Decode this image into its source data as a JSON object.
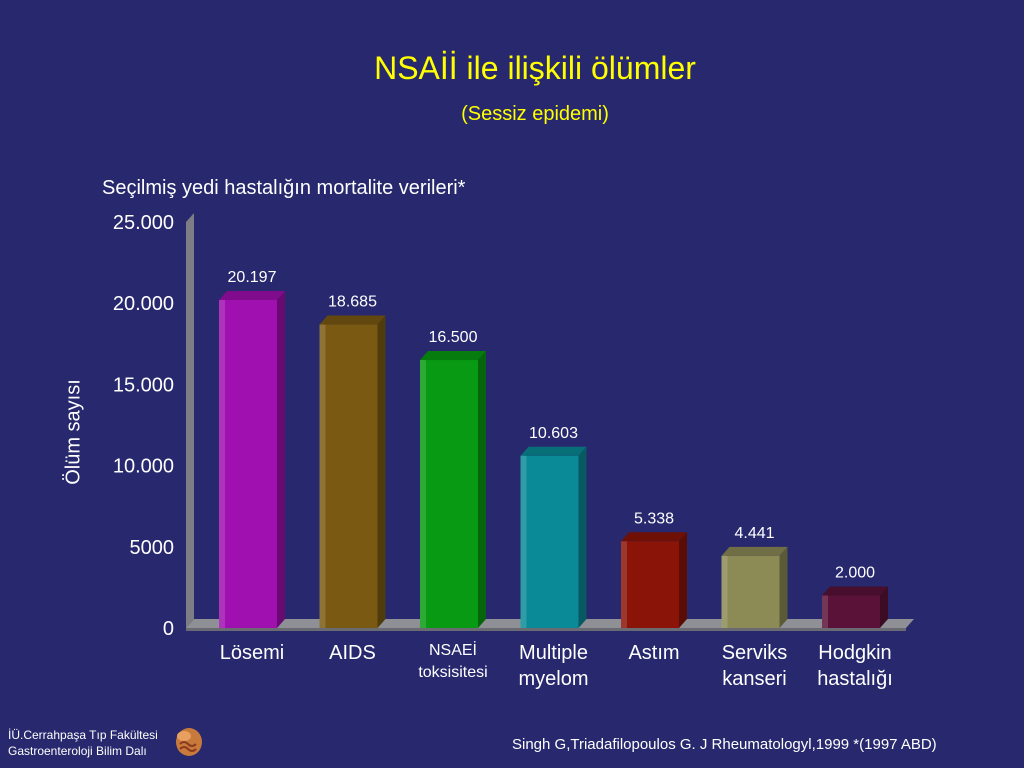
{
  "slide": {
    "title": "NSAİİ ile ilişkili ölümler",
    "subtitle": "(Sessiz epidemi)",
    "footer": {
      "institution_line1": "İÜ.Cerrahpaşa Tıp Fakültesi",
      "institution_line2": "Gastroenteroloji Bilim Dalı",
      "citation": "Singh G,Triadafilopoulos G. J Rheumatologyl,1999    *(1997 ABD)"
    }
  },
  "chart_data": {
    "type": "bar",
    "title": "Seçilmiş yedi hastalığın  mortalite verileri*",
    "ylabel": "Ölüm sayısı",
    "ylim": [
      0,
      25000
    ],
    "yticks": [
      0,
      5000,
      10000,
      15000,
      20000,
      25000
    ],
    "ytick_labels": [
      "0",
      "5000",
      "10.000",
      "15.000",
      "20.000",
      "25.000"
    ],
    "categories": [
      [
        "Lösemi"
      ],
      [
        "AIDS"
      ],
      [
        "NSAEİ",
        "toksisitesi"
      ],
      [
        "Multiple",
        "myelom"
      ],
      [
        "Astım"
      ],
      [
        "Serviks",
        "kanseri"
      ],
      [
        "Hodgkin",
        "hastalığı"
      ]
    ],
    "values": [
      20197,
      18685,
      16500,
      10603,
      5338,
      4441,
      2000
    ],
    "value_labels": [
      "20.197",
      "18.685",
      "16.500",
      "10.603",
      "5.338",
      "4.441",
      "2.000"
    ],
    "colors": [
      "#a00fb0",
      "#7a5a12",
      "#089a12",
      "#0a8a96",
      "#8a1408",
      "#8c8a55",
      "#5a1238"
    ],
    "grid": false
  }
}
